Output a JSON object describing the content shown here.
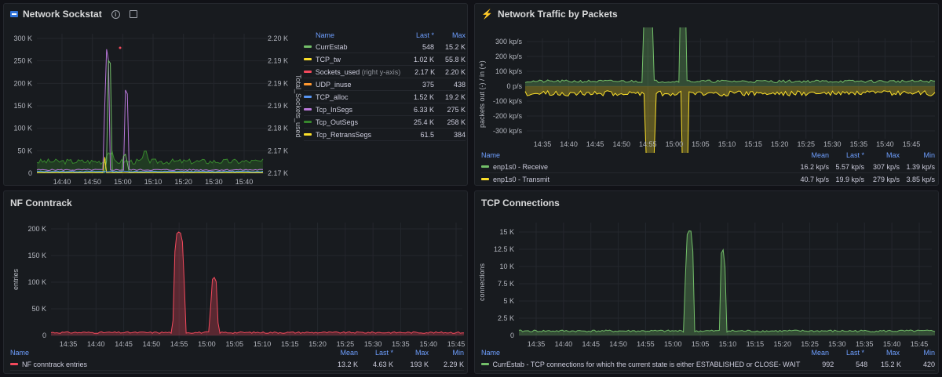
{
  "panels": {
    "sockstat": {
      "title": "Network Sockstat",
      "y_left_ticks": [
        "300 K",
        "250 K",
        "200 K",
        "150 K",
        "100 K",
        "50 K",
        "0"
      ],
      "y_right_ticks": [
        "2.20 K",
        "2.19 K",
        "2.19 K",
        "2.19 K",
        "2.18 K",
        "2.17 K",
        "2.17 K"
      ],
      "right_axis_label": "Total_Sockets_used",
      "x_ticks": [
        "14:40",
        "14:50",
        "15:00",
        "15:10",
        "15:20",
        "15:30",
        "15:40"
      ],
      "legend_headers": {
        "name": "Name",
        "last": "Last *",
        "max": "Max"
      },
      "legend": [
        {
          "name": "CurrEstab",
          "suffix": "",
          "last": "548",
          "max": "15.2 K",
          "color": "#73bf69"
        },
        {
          "name": "TCP_tw",
          "suffix": "",
          "last": "1.02 K",
          "max": "55.8 K",
          "color": "#fade2a"
        },
        {
          "name": "Sockets_used",
          "suffix": "(right y-axis)",
          "last": "2.17 K",
          "max": "2.20 K",
          "color": "#f2495c"
        },
        {
          "name": "UDP_inuse",
          "suffix": "",
          "last": "375",
          "max": "438",
          "color": "#ff9830"
        },
        {
          "name": "TCP_alloc",
          "suffix": "",
          "last": "1.52 K",
          "max": "19.2 K",
          "color": "#5794f2"
        },
        {
          "name": "Tcp_InSegs",
          "suffix": "",
          "last": "6.33 K",
          "max": "275 K",
          "color": "#b877d9"
        },
        {
          "name": "Tcp_OutSegs",
          "suffix": "",
          "last": "25.4 K",
          "max": "258 K",
          "color": "#37872d"
        },
        {
          "name": "Tcp_RetransSegs",
          "suffix": "",
          "last": "61.5",
          "max": "384",
          "color": "#fade2a"
        }
      ]
    },
    "traffic": {
      "title": "Network Traffic by Packets",
      "y_axis_label": "packets out (-) / in (+)",
      "y_ticks": [
        "300 kp/s",
        "200 kp/s",
        "100 kp/s",
        "0 p/s",
        "-100 kp/s",
        "-200 kp/s",
        "-300 kp/s"
      ],
      "x_ticks": [
        "14:35",
        "14:40",
        "14:45",
        "14:50",
        "14:55",
        "15:00",
        "15:05",
        "15:10",
        "15:15",
        "15:20",
        "15:25",
        "15:30",
        "15:35",
        "15:40",
        "15:45"
      ],
      "legend_headers": {
        "name": "Name",
        "mean": "Mean",
        "last": "Last *",
        "max": "Max",
        "min": "Min"
      },
      "legend": [
        {
          "name": "enp1s0 - Receive",
          "mean": "16.2 kp/s",
          "last": "5.57 kp/s",
          "max": "307 kp/s",
          "min": "1.39 kp/s",
          "color": "#73bf69"
        },
        {
          "name": "enp1s0 - Transmit",
          "mean": "40.7 kp/s",
          "last": "19.9 kp/s",
          "max": "279 kp/s",
          "min": "3.85 kp/s",
          "color": "#fade2a"
        }
      ]
    },
    "conntrack": {
      "title": "NF Conntrack",
      "y_axis_label": "entries",
      "y_ticks": [
        "200 K",
        "150 K",
        "100 K",
        "50 K",
        "0"
      ],
      "x_ticks": [
        "14:35",
        "14:40",
        "14:45",
        "14:50",
        "14:55",
        "15:00",
        "15:05",
        "15:10",
        "15:15",
        "15:20",
        "15:25",
        "15:30",
        "15:35",
        "15:40",
        "15:45"
      ],
      "legend_headers": {
        "name": "Name",
        "mean": "Mean",
        "last": "Last *",
        "max": "Max",
        "min": "Min"
      },
      "legend": [
        {
          "name": "NF conntrack entries",
          "mean": "13.2 K",
          "last": "4.63 K",
          "max": "193 K",
          "min": "2.29 K",
          "color": "#f2495c"
        }
      ]
    },
    "tcp": {
      "title": "TCP Connections",
      "y_axis_label": "connections",
      "y_ticks": [
        "15 K",
        "12.5 K",
        "10 K",
        "7.5 K",
        "5 K",
        "2.5 K",
        "0"
      ],
      "x_ticks": [
        "14:35",
        "14:40",
        "14:45",
        "14:50",
        "14:55",
        "15:00",
        "15:05",
        "15:10",
        "15:15",
        "15:20",
        "15:25",
        "15:30",
        "15:35",
        "15:40",
        "15:45"
      ],
      "legend_headers": {
        "name": "Name",
        "mean": "Mean",
        "last": "Last *",
        "max": "Max",
        "min": "Min"
      },
      "legend": [
        {
          "name": "CurrEstab - TCP connections for which the current state is either ESTABLISHED or CLOSE- WAIT",
          "mean": "992",
          "last": "548",
          "max": "15.2 K",
          "min": "420",
          "color": "#73bf69"
        }
      ]
    }
  }
}
